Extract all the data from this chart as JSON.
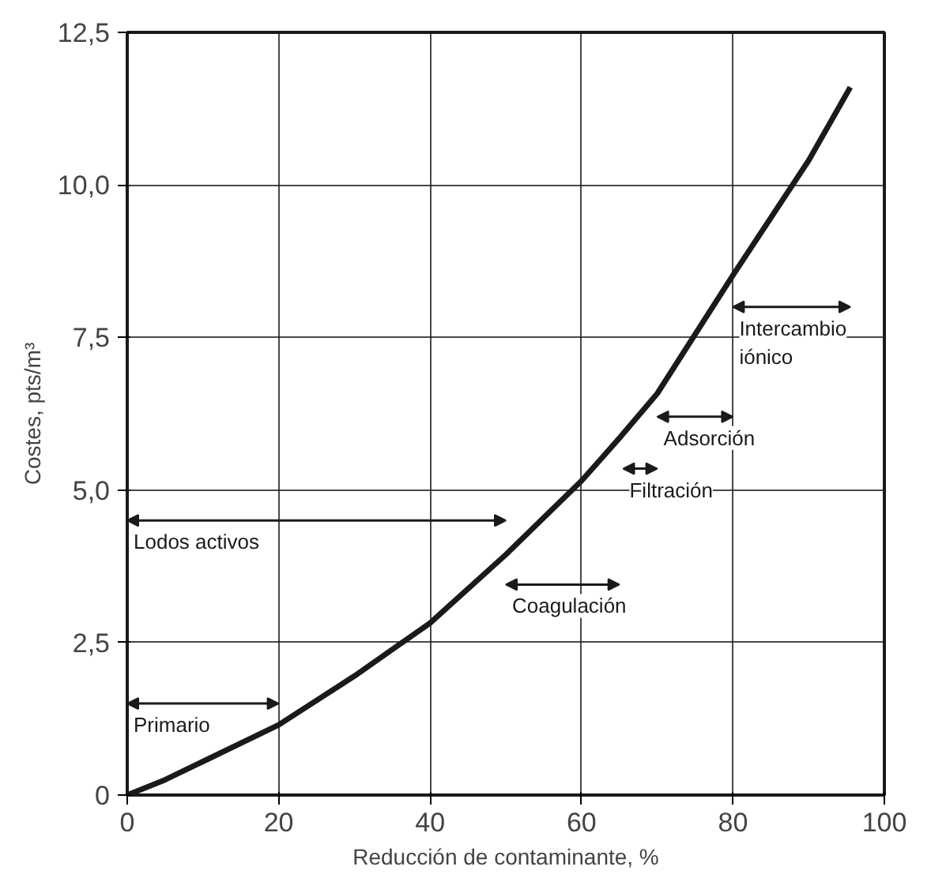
{
  "chart_data": {
    "type": "line",
    "xlabel": "Reducción de contaminante, %",
    "ylabel": "Costes, pts/m³",
    "x": [
      0,
      5,
      10,
      20,
      30,
      40,
      50,
      60,
      65,
      70,
      80,
      90,
      95.5
    ],
    "series": [
      {
        "color": "#1a1a1a",
        "values": [
          0,
          0.25,
          0.55,
          1.15,
          1.95,
          2.82,
          3.94,
          5.15,
          5.85,
          6.58,
          8.52,
          10.4,
          11.6
        ]
      }
    ],
    "xlim": [
      0,
      100
    ],
    "ylim": [
      0,
      12.5
    ],
    "xticks": [
      0,
      20,
      40,
      60,
      80,
      100
    ],
    "yticks": [
      0,
      {
        "value": 2.5,
        "label": "2,5"
      },
      {
        "value": 5,
        "label": "5,0"
      },
      {
        "value": 7.5,
        "label": "7,5"
      },
      {
        "value": 10,
        "label": "10,0"
      },
      {
        "value": 12.5,
        "label": "12,5"
      }
    ],
    "grid": true,
    "marker": "none",
    "line_style": "solid",
    "annotations": [
      "Primario",
      "Lodos activos",
      "Coagulación",
      "Filtración",
      "Adsorción",
      "Intercambio\niónico"
    ]
  }
}
